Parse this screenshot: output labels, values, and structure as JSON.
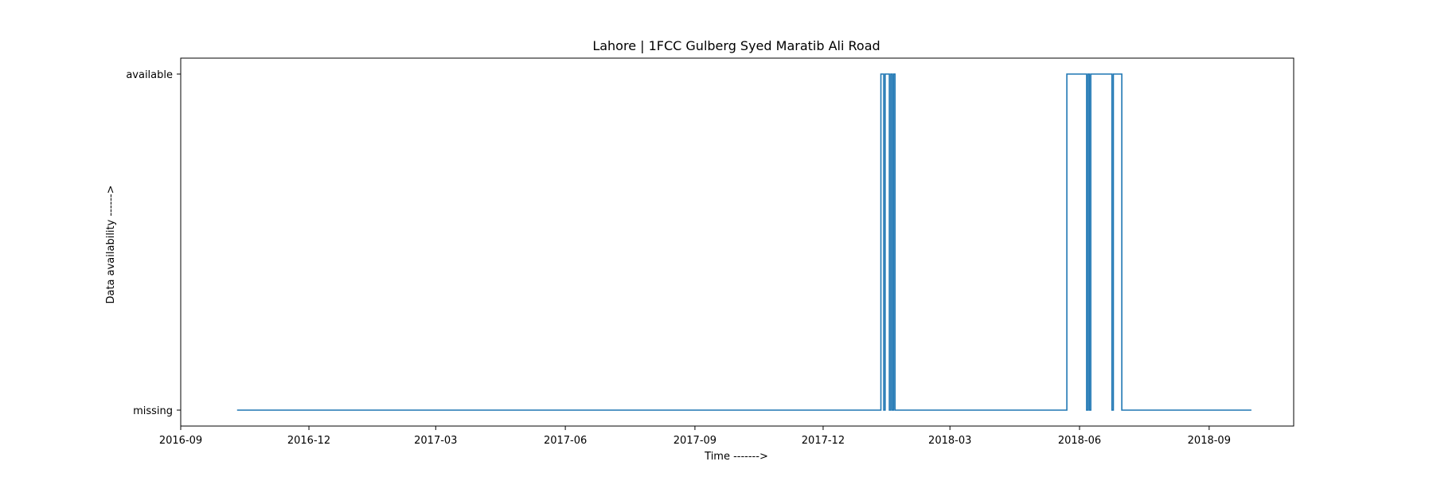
{
  "colors": {
    "series": "#1f77b4",
    "axes": "#000000",
    "background": "#ffffff"
  },
  "chart_data": {
    "type": "line",
    "title": "Lahore | 1FCC Gulberg Syed Maratib Ali Road",
    "xlabel": "Time ------->",
    "ylabel": "Data availability ------>",
    "x_ticks": [
      "2016-09",
      "2016-12",
      "2017-03",
      "2017-06",
      "2017-09",
      "2017-12",
      "2018-03",
      "2018-06",
      "2018-09"
    ],
    "y_ticks": [
      "missing",
      "available"
    ],
    "xlim": [
      "2016-09-01",
      "2018-10-31"
    ],
    "step": "post",
    "grid": false,
    "legend": "none",
    "series": [
      {
        "points": [
          [
            "2016-10-11",
            "missing"
          ],
          [
            "2018-01-11",
            "available"
          ],
          [
            "2018-01-13",
            "missing"
          ],
          [
            "2018-01-14",
            "available"
          ],
          [
            "2018-01-17",
            "missing"
          ],
          [
            "2018-01-18",
            "available"
          ],
          [
            "2018-01-19",
            "missing"
          ],
          [
            "2018-01-20",
            "available"
          ],
          [
            "2018-01-21",
            "missing"
          ],
          [
            "2018-05-23",
            "available"
          ],
          [
            "2018-06-06",
            "missing"
          ],
          [
            "2018-06-07",
            "available"
          ],
          [
            "2018-06-08",
            "missing"
          ],
          [
            "2018-06-09",
            "available"
          ],
          [
            "2018-06-24",
            "missing"
          ],
          [
            "2018-06-25",
            "available"
          ],
          [
            "2018-07-01",
            "missing"
          ],
          [
            "2018-10-01",
            "missing"
          ]
        ]
      }
    ]
  }
}
